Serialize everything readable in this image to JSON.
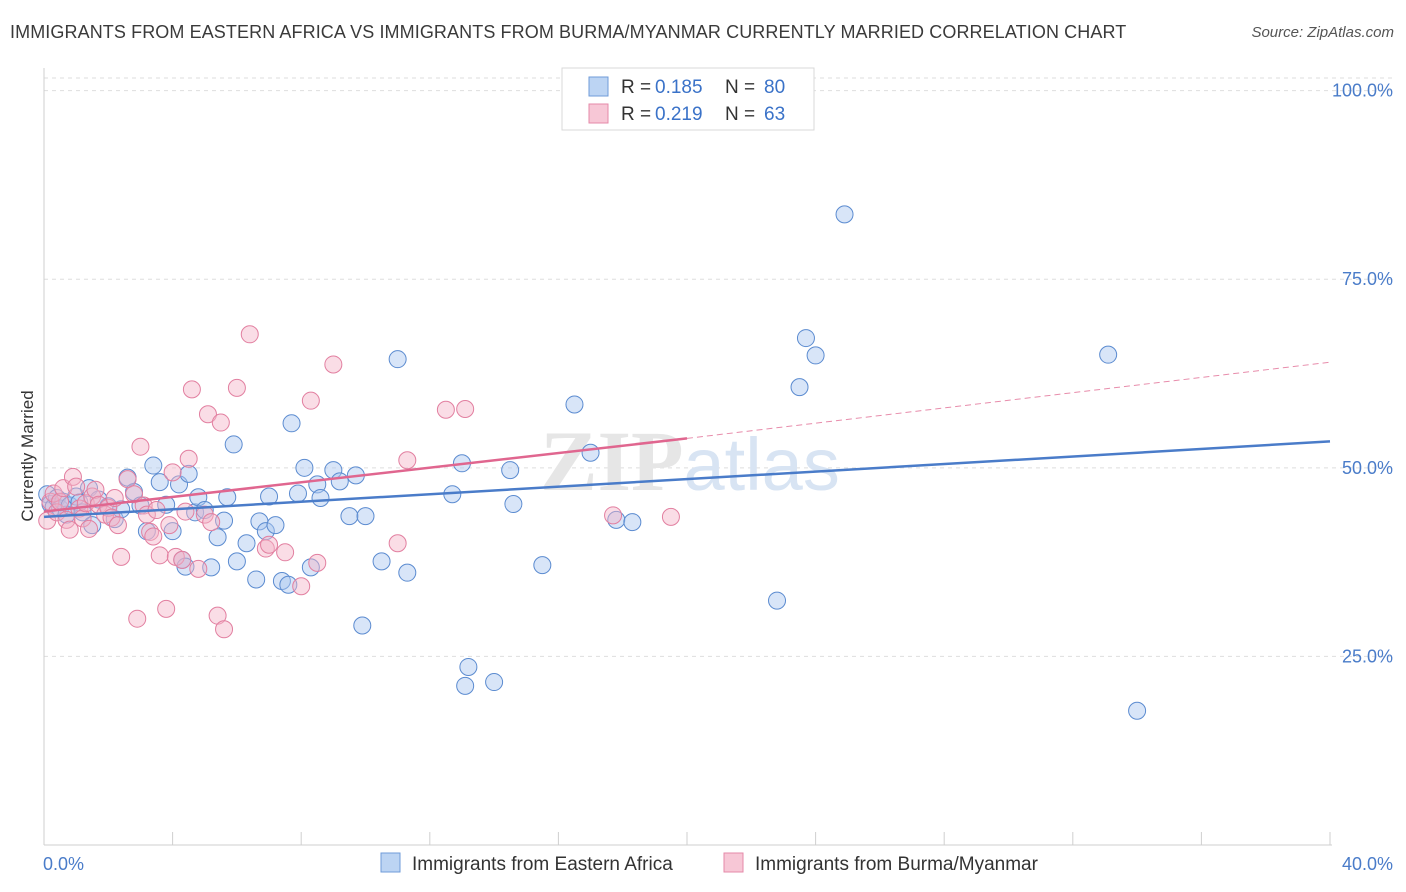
{
  "title": "IMMIGRANTS FROM EASTERN AFRICA VS IMMIGRANTS FROM BURMA/MYANMAR CURRENTLY MARRIED CORRELATION CHART",
  "source": "Source: ZipAtlas.com",
  "watermark": "ZIPatlas",
  "colors": {
    "blue": "#4a7cc9",
    "blue_fill": "#a9c6ef",
    "pink": "#e0668f",
    "pink_fill": "#f3b3c8",
    "grid": "#dedede"
  },
  "legend": {
    "rows": [
      {
        "r_label": "R =",
        "r_value": "0.185",
        "n_label": "N =",
        "n_value": "80"
      },
      {
        "r_label": "R =",
        "r_value": "0.219",
        "n_label": "N =",
        "n_value": "63"
      }
    ]
  },
  "bottom_legend": [
    "Immigrants from Eastern Africa",
    "Immigrants from Burma/Myanmar"
  ],
  "chart_data": {
    "type": "scatter",
    "title": "IMMIGRANTS FROM EASTERN AFRICA VS IMMIGRANTS FROM BURMA/MYANMAR CURRENTLY MARRIED CORRELATION CHART",
    "xlabel": "",
    "ylabel": "Currently Married",
    "xlim": [
      0,
      40
    ],
    "ylim": [
      0,
      103
    ],
    "x_tick_labels": [
      "0.0%",
      "40.0%"
    ],
    "y_tick_labels": [
      "25.0%",
      "50.0%",
      "75.0%",
      "100.0%"
    ],
    "y_ticks": [
      25,
      50,
      75,
      100
    ],
    "grid": true,
    "legend_position": "top-center",
    "series": [
      {
        "name": "Immigrants from Eastern Africa",
        "color": "#4a7cc9",
        "r": 0.185,
        "n": 80,
        "trend": {
          "x": [
            0,
            40
          ],
          "y": [
            43.5,
            53.5
          ],
          "dashed_to": null
        },
        "points": [
          [
            0.1,
            46.5
          ],
          [
            0.2,
            45.2
          ],
          [
            0.3,
            44.8
          ],
          [
            0.4,
            46.0
          ],
          [
            0.5,
            44.6
          ],
          [
            0.6,
            45.5
          ],
          [
            0.7,
            43.8
          ],
          [
            0.8,
            45.0
          ],
          [
            1.0,
            46.2
          ],
          [
            1.1,
            45.4
          ],
          [
            1.2,
            44.1
          ],
          [
            1.4,
            47.3
          ],
          [
            1.5,
            42.4
          ],
          [
            1.7,
            45.8
          ],
          [
            2.0,
            44.9
          ],
          [
            2.2,
            43.2
          ],
          [
            2.4,
            44.5
          ],
          [
            2.6,
            48.7
          ],
          [
            2.8,
            46.8
          ],
          [
            3.0,
            45.0
          ],
          [
            3.2,
            41.6
          ],
          [
            3.4,
            50.3
          ],
          [
            3.6,
            48.1
          ],
          [
            3.8,
            45.1
          ],
          [
            4.0,
            41.6
          ],
          [
            4.2,
            47.8
          ],
          [
            4.3,
            37.8
          ],
          [
            4.4,
            36.9
          ],
          [
            4.5,
            49.2
          ],
          [
            4.7,
            44.1
          ],
          [
            4.8,
            46.1
          ],
          [
            5.0,
            44.4
          ],
          [
            5.2,
            36.8
          ],
          [
            5.4,
            40.8
          ],
          [
            5.6,
            43.0
          ],
          [
            5.7,
            46.1
          ],
          [
            5.9,
            53.1
          ],
          [
            6.0,
            37.6
          ],
          [
            6.3,
            40.0
          ],
          [
            6.6,
            35.2
          ],
          [
            6.7,
            42.9
          ],
          [
            6.9,
            41.6
          ],
          [
            7.0,
            46.2
          ],
          [
            7.2,
            42.4
          ],
          [
            7.4,
            35.0
          ],
          [
            7.6,
            34.5
          ],
          [
            7.7,
            55.9
          ],
          [
            7.9,
            46.6
          ],
          [
            8.1,
            50.0
          ],
          [
            8.3,
            36.8
          ],
          [
            8.5,
            47.8
          ],
          [
            8.6,
            46.0
          ],
          [
            9.0,
            49.7
          ],
          [
            9.2,
            48.2
          ],
          [
            9.5,
            43.6
          ],
          [
            9.7,
            49.0
          ],
          [
            9.9,
            29.1
          ],
          [
            10.0,
            43.6
          ],
          [
            10.5,
            37.6
          ],
          [
            11.0,
            64.4
          ],
          [
            11.3,
            36.1
          ],
          [
            12.7,
            46.5
          ],
          [
            13.0,
            50.6
          ],
          [
            13.1,
            21.1
          ],
          [
            13.2,
            23.6
          ],
          [
            14.0,
            21.6
          ],
          [
            14.5,
            49.7
          ],
          [
            14.6,
            45.2
          ],
          [
            15.5,
            37.1
          ],
          [
            16.5,
            58.4
          ],
          [
            17.0,
            52.0
          ],
          [
            17.8,
            43.1
          ],
          [
            18.3,
            42.8
          ],
          [
            22.8,
            32.4
          ],
          [
            23.5,
            60.7
          ],
          [
            23.7,
            67.2
          ],
          [
            24.0,
            64.9
          ],
          [
            24.9,
            83.6
          ],
          [
            33.1,
            65.0
          ],
          [
            34.0,
            17.8
          ]
        ]
      },
      {
        "name": "Immigrants from Burma/Myanmar",
        "color": "#e0668f",
        "r": 0.219,
        "n": 63,
        "trend": {
          "x": [
            0,
            20
          ],
          "y": [
            44.2,
            53.9
          ],
          "dashed_to": {
            "x": 40,
            "y": 64.0
          }
        },
        "points": [
          [
            0.1,
            43.0
          ],
          [
            0.2,
            45.5
          ],
          [
            0.3,
            46.6
          ],
          [
            0.4,
            44.1
          ],
          [
            0.5,
            45.5
          ],
          [
            0.6,
            47.3
          ],
          [
            0.7,
            43.1
          ],
          [
            0.8,
            41.8
          ],
          [
            0.9,
            48.8
          ],
          [
            1.0,
            47.5
          ],
          [
            1.1,
            44.6
          ],
          [
            1.2,
            43.3
          ],
          [
            1.3,
            45.3
          ],
          [
            1.4,
            41.9
          ],
          [
            1.5,
            46.2
          ],
          [
            1.6,
            47.1
          ],
          [
            1.7,
            45.1
          ],
          [
            1.9,
            43.8
          ],
          [
            2.0,
            44.7
          ],
          [
            2.1,
            43.4
          ],
          [
            2.2,
            46.0
          ],
          [
            2.3,
            42.4
          ],
          [
            2.4,
            38.2
          ],
          [
            2.6,
            48.5
          ],
          [
            2.8,
            46.5
          ],
          [
            2.9,
            30.0
          ],
          [
            3.0,
            52.8
          ],
          [
            3.1,
            45.0
          ],
          [
            3.2,
            43.8
          ],
          [
            3.3,
            41.5
          ],
          [
            3.4,
            40.9
          ],
          [
            3.5,
            44.4
          ],
          [
            3.6,
            38.4
          ],
          [
            3.8,
            31.3
          ],
          [
            3.9,
            42.4
          ],
          [
            4.0,
            49.4
          ],
          [
            4.1,
            38.2
          ],
          [
            4.3,
            37.8
          ],
          [
            4.4,
            44.2
          ],
          [
            4.5,
            51.2
          ],
          [
            4.6,
            60.4
          ],
          [
            4.8,
            36.6
          ],
          [
            5.0,
            43.8
          ],
          [
            5.1,
            57.1
          ],
          [
            5.2,
            42.8
          ],
          [
            5.4,
            30.4
          ],
          [
            5.5,
            56.0
          ],
          [
            5.6,
            28.6
          ],
          [
            6.0,
            60.6
          ],
          [
            6.4,
            67.7
          ],
          [
            6.9,
            39.3
          ],
          [
            7.0,
            39.8
          ],
          [
            7.5,
            38.8
          ],
          [
            8.0,
            34.3
          ],
          [
            8.3,
            58.9
          ],
          [
            8.5,
            37.4
          ],
          [
            9.0,
            63.7
          ],
          [
            11.0,
            40.0
          ],
          [
            11.3,
            51.0
          ],
          [
            12.5,
            57.7
          ],
          [
            13.1,
            57.8
          ],
          [
            17.7,
            43.7
          ],
          [
            19.5,
            43.5
          ]
        ]
      }
    ]
  }
}
